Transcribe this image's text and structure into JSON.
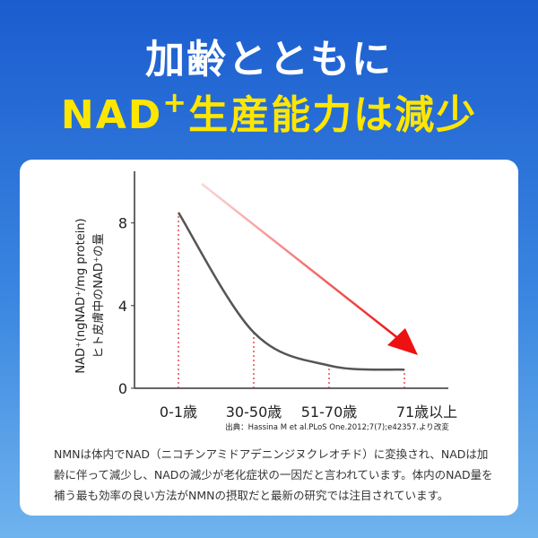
{
  "header": {
    "title_line1": "加齢とともに",
    "title_line2_prefix": "NAD",
    "title_line2_sup": "+",
    "title_line2_rest": "生産能力は減少"
  },
  "chart_data": {
    "type": "line",
    "y_label_line1": "NAD⁺(ngNAD⁺/mg protein)",
    "y_label_line2": "ヒト皮膚中のNAD⁺の量",
    "categories": [
      "0-1歳",
      "30-50歳",
      "51-70歳",
      "71歳以上"
    ],
    "values": [
      8.5,
      2.7,
      1.1,
      0.9
    ],
    "color": "#555555",
    "ylim": [
      0,
      10.5
    ],
    "yticks": [
      0,
      4,
      8
    ],
    "source": "出典：Hassina M et al.PLoS One.2012;7(7);e42357.より改変"
  },
  "description": "NMNは体内でNAD（ニコチンアミドアデニンジヌクレオチド）に変換され、NADは加齢に伴って減少し、NADの減少が老化症状の一因だと言われています。体内のNAD量を補う最も効率の良い方法がNMNの摂取だと最新の研究では注目されています。"
}
